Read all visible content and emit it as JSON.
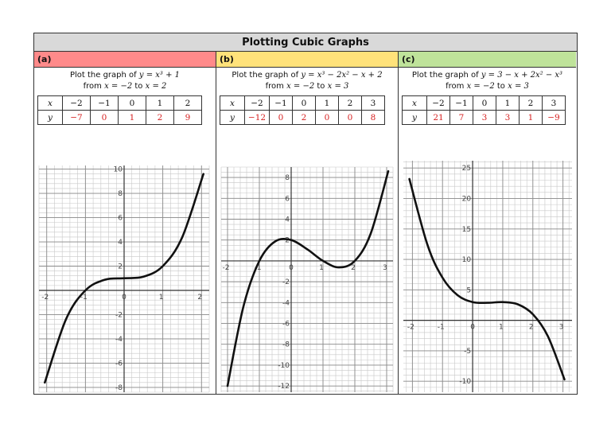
{
  "title": "Plotting Cubic Graphs",
  "panels": [
    {
      "label": "(a)",
      "header_color": "#ff8a8a",
      "prompt_line1": "Plot the graph of",
      "equation": "y = x³ + 1",
      "prompt_line2_from": "from",
      "range_from": "x = −2",
      "range_to_word": "to",
      "range_to": "x = 2",
      "table": {
        "x_label": "x",
        "y_label": "y",
        "x": [
          "−2",
          "−1",
          "0",
          "1",
          "2"
        ],
        "y": [
          "−7",
          "0",
          "1",
          "2",
          "9"
        ]
      },
      "chart_data": {
        "type": "line",
        "function": "y = x^3 + 1",
        "x": [
          -2.05,
          -1.5,
          -1,
          -0.5,
          0,
          0.5,
          1,
          1.5,
          2.05
        ],
        "y": [
          -7.6,
          -2.375,
          0,
          0.875,
          1,
          1.125,
          2,
          4.375,
          9.6
        ],
        "xlim": [
          -2.2,
          2.2
        ],
        "ylim": [
          -8.4,
          10.3
        ],
        "x_ticks": [
          "-2",
          "-1",
          "0",
          "1",
          "2"
        ],
        "y_ticks": [
          "10",
          "8",
          "6",
          "4",
          "2",
          "-2",
          "-4",
          "-6",
          "-8"
        ],
        "grid": true
      }
    },
    {
      "label": "(b)",
      "header_color": "#ffe27a",
      "prompt_line1": "Plot the graph of",
      "equation": "y = x³ − 2x² − x + 2",
      "prompt_line2_from": "from",
      "range_from": "x = −2",
      "range_to_word": "to",
      "range_to": "x = 3",
      "table": {
        "x_label": "x",
        "y_label": "y",
        "x": [
          "−2",
          "−1",
          "0",
          "1",
          "2",
          "3"
        ],
        "y": [
          "−12",
          "0",
          "2",
          "0",
          "0",
          "8"
        ]
      },
      "chart_data": {
        "type": "line",
        "function": "y = x^3 - 2x^2 - x + 2",
        "x": [
          -2.0,
          -1.5,
          -1,
          -0.5,
          0,
          0.5,
          1,
          1.5,
          2,
          2.5,
          3.05
        ],
        "y": [
          -12,
          -4.375,
          0,
          1.875,
          2,
          1.125,
          0,
          -0.625,
          0,
          2.625,
          8.6
        ],
        "xlim": [
          -2.2,
          3.2
        ],
        "ylim": [
          -12.6,
          9.0
        ],
        "x_ticks": [
          "-2",
          "-1",
          "0",
          "1",
          "2",
          "3"
        ],
        "y_ticks": [
          "8",
          "6",
          "4",
          "2",
          "-2",
          "-4",
          "-6",
          "-8",
          "-10",
          "-12"
        ],
        "grid": true
      }
    },
    {
      "label": "(c)",
      "header_color": "#bfe39a",
      "prompt_line1": "Plot the graph of",
      "equation": "y = 3 − x + 2x² − x³",
      "prompt_line2_from": "from",
      "range_from": "x = −2",
      "range_to_word": "to",
      "range_to": "x = 3",
      "table": {
        "x_label": "x",
        "y_label": "y",
        "x": [
          "−2",
          "−1",
          "0",
          "1",
          "2",
          "3"
        ],
        "y": [
          "21",
          "7",
          "3",
          "3",
          "1",
          "−9"
        ]
      },
      "chart_data": {
        "type": "line",
        "function": "y = 3 - x + 2x^2 - x^3",
        "x": [
          -2.1,
          -1.5,
          -1,
          -0.5,
          0,
          0.5,
          1,
          1.5,
          2,
          2.5,
          3.05
        ],
        "y": [
          23.2,
          12.4,
          7,
          4.125,
          3,
          2.875,
          3,
          2.625,
          1,
          -2.625,
          -9.7
        ],
        "xlim": [
          -2.3,
          3.3
        ],
        "ylim": [
          -11.8,
          26.2
        ],
        "x_ticks": [
          "-2",
          "-1",
          "0",
          "1",
          "2",
          "3"
        ],
        "y_ticks": [
          "25",
          "20",
          "15",
          "10",
          "5",
          "-5",
          "-10"
        ],
        "grid": true
      }
    }
  ]
}
